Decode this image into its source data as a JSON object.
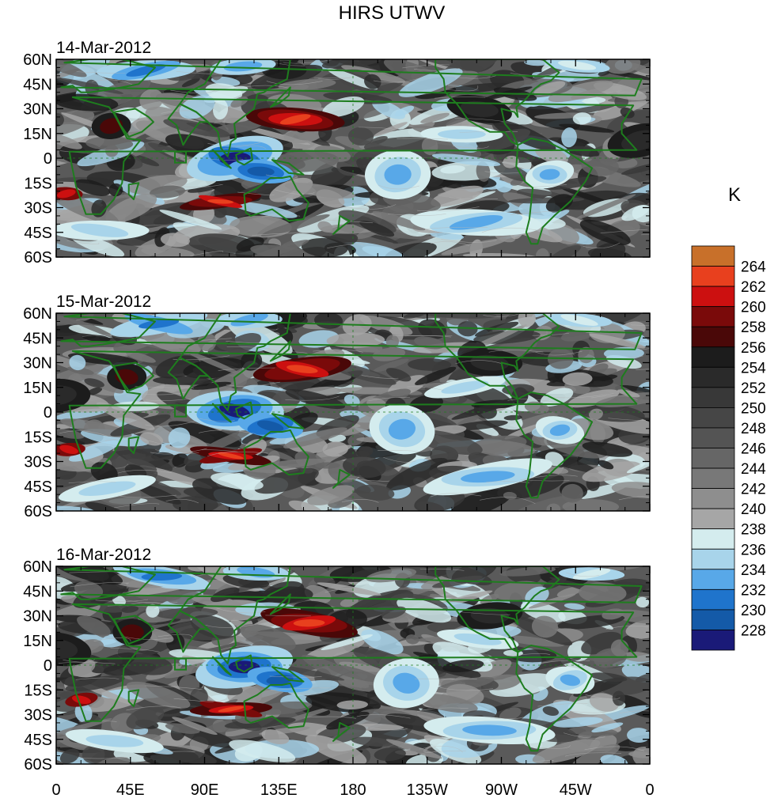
{
  "figure": {
    "title": "HIRS UTWV",
    "units_label": "K"
  },
  "panels": [
    {
      "date": "14-Mar-2012"
    },
    {
      "date": "15-Mar-2012"
    },
    {
      "date": "16-Mar-2012"
    }
  ],
  "axes": {
    "lat_labels": [
      "60N",
      "45N",
      "30N",
      "15N",
      "0",
      "15S",
      "30S",
      "45S",
      "60S"
    ],
    "lon_labels": [
      "0",
      "45E",
      "90E",
      "135E",
      "180",
      "135W",
      "90W",
      "45W",
      "0"
    ],
    "lat_range": [
      -60,
      60
    ],
    "lon_range": [
      0,
      360
    ]
  },
  "colorbar": {
    "labels": [
      "264",
      "262",
      "260",
      "258",
      "256",
      "254",
      "252",
      "250",
      "248",
      "246",
      "244",
      "242",
      "240",
      "238",
      "236",
      "234",
      "232",
      "230",
      "228"
    ],
    "colors": [
      "#c8702a",
      "#e8401e",
      "#cc1010",
      "#7a0a0a",
      "#4a0808",
      "#1c1c1c",
      "#2a2a2a",
      "#383838",
      "#464646",
      "#545454",
      "#666666",
      "#787878",
      "#8e8e8e",
      "#a6a6a6",
      "#d4ecee",
      "#a8d4ea",
      "#58a8e8",
      "#1f74cc",
      "#145aa8",
      "#1a1a78"
    ]
  },
  "coast_color": "#1e7d1e"
}
